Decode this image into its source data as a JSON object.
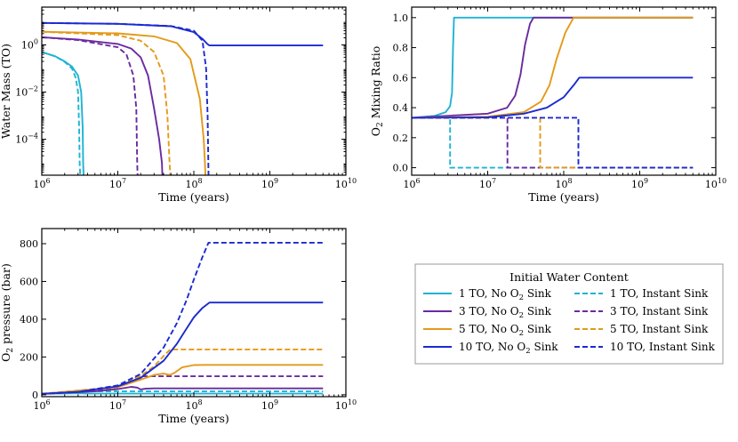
{
  "colors": {
    "1 TO": "#1fb3d4",
    "3 TO": "#6a2aa0",
    "5 TO": "#e39a1a",
    "10 TO": "#1c2ad0"
  },
  "legend": {
    "title": "Initial Water Content",
    "entries": [
      {
        "label_main": "1 TO,  No O",
        "label_sub": "2",
        "label_tail": " Sink",
        "series": "1 TO",
        "dash": false
      },
      {
        "label_main": "1 TO,  Instant Sink",
        "label_sub": "",
        "label_tail": "",
        "series": "1 TO",
        "dash": true
      },
      {
        "label_main": "3 TO,  No O",
        "label_sub": "2",
        "label_tail": " Sink",
        "series": "3 TO",
        "dash": false
      },
      {
        "label_main": "3 TO,  Instant Sink",
        "label_sub": "",
        "label_tail": "",
        "series": "3 TO",
        "dash": true
      },
      {
        "label_main": "5 TO,  No O",
        "label_sub": "2",
        "label_tail": " Sink",
        "series": "5 TO",
        "dash": false
      },
      {
        "label_main": "5 TO,  Instant Sink",
        "label_sub": "",
        "label_tail": "",
        "series": "5 TO",
        "dash": true
      },
      {
        "label_main": "10 TO,  No O",
        "label_sub": "2",
        "label_tail": " Sink",
        "series": "10 TO",
        "dash": false
      },
      {
        "label_main": "10 TO,  Instant Sink",
        "label_sub": "",
        "label_tail": "",
        "series": "10 TO",
        "dash": true
      }
    ]
  },
  "chart_data": [
    {
      "id": "water-mass",
      "type": "line",
      "xlabel": "Time (years)",
      "ylabel": "Water Mass (TO)",
      "xscale": "log",
      "yscale": "log",
      "xlim": [
        1000000.0,
        10000000000.0
      ],
      "ylim": [
        3e-06,
        40
      ],
      "xticks": [
        1000000.0,
        10000000.0,
        100000000.0,
        1000000000.0,
        10000000000.0
      ],
      "xtick_exps": [
        "6",
        "7",
        "8",
        "9",
        "10"
      ],
      "yticks": [
        0.0001,
        0.01,
        1
      ],
      "ytick_labels": [
        "10",
        "10",
        "10"
      ],
      "ytick_exps": [
        "−4",
        "−2",
        "0"
      ],
      "series": [
        {
          "name": "1 TO, No O2 Sink",
          "group": "1 TO",
          "dash": false,
          "x": [
            1000000.0,
            1500000.0,
            2000000.0,
            2500000.0,
            3000000.0,
            3300000.0,
            3450000.0,
            3500000.0,
            3550000.0
          ],
          "y": [
            0.5,
            0.33,
            0.2,
            0.12,
            0.05,
            0.01,
            0.0003,
            1e-05,
            3e-06
          ]
        },
        {
          "name": "1 TO, Instant Sink",
          "group": "1 TO",
          "dash": true,
          "x": [
            1000000.0,
            1500000.0,
            2000000.0,
            2500000.0,
            2800000.0,
            3000000.0,
            3100000.0,
            3150000.0,
            3200000.0
          ],
          "y": [
            0.5,
            0.33,
            0.19,
            0.1,
            0.04,
            0.01,
            0.0003,
            1e-05,
            3e-06
          ]
        },
        {
          "name": "3 TO, No O2 Sink",
          "group": "3 TO",
          "dash": false,
          "x": [
            1000000.0,
            3000000.0,
            10000000.0,
            15000000.0,
            20000000.0,
            25000000.0,
            30000000.0,
            35000000.0,
            38000000.0,
            38500000.0
          ],
          "y": [
            2.1,
            1.7,
            1.1,
            0.7,
            0.3,
            0.05,
            0.002,
            0.0001,
            1e-05,
            3e-06
          ]
        },
        {
          "name": "3 TO, Instant Sink",
          "group": "3 TO",
          "dash": true,
          "x": [
            1000000.0,
            3000000.0,
            10000000.0,
            13000000.0,
            16000000.0,
            17500000.0,
            18000000.0,
            18200000.0
          ],
          "y": [
            2.1,
            1.6,
            0.8,
            0.4,
            0.05,
            0.002,
            1e-05,
            3e-06
          ]
        },
        {
          "name": "5 TO, No O2 Sink",
          "group": "5 TO",
          "dash": false,
          "x": [
            1000000.0,
            10000000.0,
            30000000.0,
            60000000.0,
            90000000.0,
            120000000.0,
            135000000.0,
            140000000.0,
            142000000.0
          ],
          "y": [
            3.6,
            3.1,
            2.3,
            1.2,
            0.25,
            0.005,
            0.0001,
            1e-05,
            3e-06
          ]
        },
        {
          "name": "5 TO, Instant Sink",
          "group": "5 TO",
          "dash": true,
          "x": [
            1000000.0,
            10000000.0,
            20000000.0,
            30000000.0,
            40000000.0,
            45000000.0,
            48000000.0,
            49000000.0
          ],
          "y": [
            3.6,
            2.6,
            1.5,
            0.5,
            0.05,
            0.001,
            1e-05,
            3e-06
          ]
        },
        {
          "name": "10 TO, No O2 Sink",
          "group": "10 TO",
          "dash": false,
          "x": [
            1000000.0,
            10000000.0,
            50000000.0,
            100000000.0,
            130000000.0,
            150000000.0,
            160000000.0,
            5000000000.0
          ],
          "y": [
            8.5,
            7.8,
            6.2,
            3.5,
            1.8,
            1.1,
            0.95,
            0.95
          ]
        },
        {
          "name": "10 TO, Instant Sink",
          "group": "10 TO",
          "dash": true,
          "x": [
            1000000.0,
            10000000.0,
            50000000.0,
            100000000.0,
            130000000.0,
            145000000.0,
            152000000.0,
            155000000.0,
            156000000.0
          ],
          "y": [
            8.5,
            7.8,
            6.3,
            4.0,
            1.5,
            0.1,
            0.001,
            1e-05,
            3e-06
          ]
        }
      ]
    },
    {
      "id": "o2-mixing-ratio",
      "type": "line",
      "xlabel": "Time (years)",
      "ylabel_main": "O",
      "ylabel_sub": "2",
      "ylabel_tail": " Mixing Ratio",
      "xscale": "log",
      "yscale": "linear",
      "xlim": [
        1000000.0,
        10000000000.0
      ],
      "ylim": [
        -0.05,
        1.07
      ],
      "xticks": [
        1000000.0,
        10000000.0,
        100000000.0,
        1000000000.0,
        10000000000.0
      ],
      "xtick_exps": [
        "6",
        "7",
        "8",
        "9",
        "10"
      ],
      "yticks": [
        0.0,
        0.2,
        0.4,
        0.6,
        0.8,
        1.0
      ],
      "ytick_labels": [
        "0.0",
        "0.2",
        "0.4",
        "0.6",
        "0.8",
        "1.0"
      ],
      "series": [
        {
          "name": "1 TO, No O2 Sink",
          "group": "1 TO",
          "dash": false,
          "x": [
            1000000.0,
            2000000.0,
            2800000.0,
            3200000.0,
            3400000.0,
            3500000.0,
            3600000.0,
            5000000000.0
          ],
          "y": [
            0.333,
            0.345,
            0.37,
            0.41,
            0.5,
            0.8,
            1.0,
            1.0
          ]
        },
        {
          "name": "1 TO, Instant Sink",
          "group": "1 TO",
          "dash": true,
          "x": [
            1000000.0,
            3200000.0,
            3200000.0,
            5000000000.0
          ],
          "y": [
            0.333,
            0.333,
            0.0,
            0.0
          ]
        },
        {
          "name": "3 TO, No O2 Sink",
          "group": "3 TO",
          "dash": false,
          "x": [
            1000000.0,
            10000000.0,
            18000000.0,
            23000000.0,
            27000000.0,
            31000000.0,
            36000000.0,
            40000000.0,
            5000000000.0
          ],
          "y": [
            0.333,
            0.36,
            0.4,
            0.48,
            0.62,
            0.82,
            0.96,
            1.0,
            1.0
          ]
        },
        {
          "name": "3 TO, Instant Sink",
          "group": "3 TO",
          "dash": true,
          "x": [
            1000000.0,
            18200000.0,
            18200000.0,
            5000000000.0
          ],
          "y": [
            0.333,
            0.333,
            0.0,
            0.0
          ]
        },
        {
          "name": "5 TO, No O2 Sink",
          "group": "5 TO",
          "dash": false,
          "x": [
            1000000.0,
            10000000.0,
            30000000.0,
            50000000.0,
            65000000.0,
            80000000.0,
            105000000.0,
            135000000.0,
            5000000000.0
          ],
          "y": [
            0.333,
            0.34,
            0.37,
            0.44,
            0.55,
            0.72,
            0.9,
            1.0,
            1.0
          ]
        },
        {
          "name": "5 TO, Instant Sink",
          "group": "5 TO",
          "dash": true,
          "x": [
            1000000.0,
            49000000.0,
            49000000.0,
            5000000000.0
          ],
          "y": [
            0.333,
            0.333,
            0.0,
            0.0
          ]
        },
        {
          "name": "10 TO, No O2 Sink",
          "group": "10 TO",
          "dash": false,
          "x": [
            1000000.0,
            10000000.0,
            30000000.0,
            60000000.0,
            100000000.0,
            140000000.0,
            160000000.0,
            5000000000.0
          ],
          "y": [
            0.333,
            0.335,
            0.36,
            0.4,
            0.47,
            0.56,
            0.6,
            0.6
          ]
        },
        {
          "name": "10 TO, Instant Sink",
          "group": "10 TO",
          "dash": true,
          "x": [
            1000000.0,
            156000000.0,
            156000000.0,
            5000000000.0
          ],
          "y": [
            0.333,
            0.333,
            0.0,
            0.0
          ]
        }
      ]
    },
    {
      "id": "o2-pressure",
      "type": "line",
      "xlabel": "Time (years)",
      "ylabel_main": "O",
      "ylabel_sub": "2",
      "ylabel_tail": " pressure (bar)",
      "xscale": "log",
      "yscale": "linear",
      "xlim": [
        1000000.0,
        10000000000.0
      ],
      "ylim": [
        -10,
        880
      ],
      "xticks": [
        1000000.0,
        10000000.0,
        100000000.0,
        1000000000.0,
        10000000000.0
      ],
      "xtick_exps": [
        "6",
        "7",
        "8",
        "9",
        "10"
      ],
      "yticks": [
        0,
        200,
        400,
        600,
        800
      ],
      "ytick_labels": [
        "0",
        "200",
        "400",
        "600",
        "800"
      ],
      "series": [
        {
          "name": "1 TO, No O2 Sink",
          "group": "1 TO",
          "dash": false,
          "x": [
            1000000.0,
            3500000.0,
            3600000.0,
            5000000000.0
          ],
          "y": [
            5,
            8,
            6,
            6
          ]
        },
        {
          "name": "1 TO, Instant Sink",
          "group": "1 TO",
          "dash": true,
          "x": [
            1000000.0,
            3200000.0,
            5000000000.0
          ],
          "y": [
            5,
            18,
            18
          ]
        },
        {
          "name": "3 TO, No O2 Sink",
          "group": "3 TO",
          "dash": false,
          "x": [
            1000000.0,
            5000000.0,
            10000000.0,
            15000000.0,
            18000000.0,
            20000000.0,
            23000000.0,
            30000000.0,
            40000000.0,
            5000000000.0
          ],
          "y": [
            5,
            18,
            30,
            42,
            38,
            28,
            32,
            34,
            34,
            34
          ]
        },
        {
          "name": "3 TO, Instant Sink",
          "group": "3 TO",
          "dash": true,
          "x": [
            1000000.0,
            5000000.0,
            10000000.0,
            15000000.0,
            18200000.0,
            5000000000.0
          ],
          "y": [
            5,
            20,
            40,
            70,
            98,
            98
          ]
        },
        {
          "name": "5 TO, No O2 Sink",
          "group": "5 TO",
          "dash": false,
          "x": [
            1000000.0,
            10000000.0,
            20000000.0,
            30000000.0,
            40000000.0,
            48000000.0,
            55000000.0,
            70000000.0,
            100000000.0,
            140000000.0,
            5000000000.0
          ],
          "y": [
            5,
            40,
            80,
            105,
            112,
            105,
            115,
            145,
            157,
            158,
            158
          ]
        },
        {
          "name": "5 TO, Instant Sink",
          "group": "5 TO",
          "dash": true,
          "x": [
            1000000.0,
            10000000.0,
            20000000.0,
            30000000.0,
            40000000.0,
            49000000.0,
            5000000000.0
          ],
          "y": [
            5,
            42,
            100,
            150,
            205,
            240,
            240
          ]
        },
        {
          "name": "10 TO, No O2 Sink",
          "group": "10 TO",
          "dash": false,
          "x": [
            1000000.0,
            3000000.0,
            10000000.0,
            20000000.0,
            40000000.0,
            60000000.0,
            80000000.0,
            100000000.0,
            130000000.0,
            160000000.0,
            5000000000.0
          ],
          "y": [
            5,
            15,
            45,
            90,
            180,
            270,
            350,
            410,
            460,
            488,
            488
          ]
        },
        {
          "name": "10 TO, Instant Sink",
          "group": "10 TO",
          "dash": true,
          "x": [
            1000000.0,
            3000000.0,
            10000000.0,
            20000000.0,
            40000000.0,
            60000000.0,
            80000000.0,
            100000000.0,
            130000000.0,
            156000000.0,
            5000000000.0
          ],
          "y": [
            5,
            15,
            50,
            110,
            250,
            380,
            500,
            610,
            730,
            805,
            805
          ]
        }
      ]
    }
  ]
}
